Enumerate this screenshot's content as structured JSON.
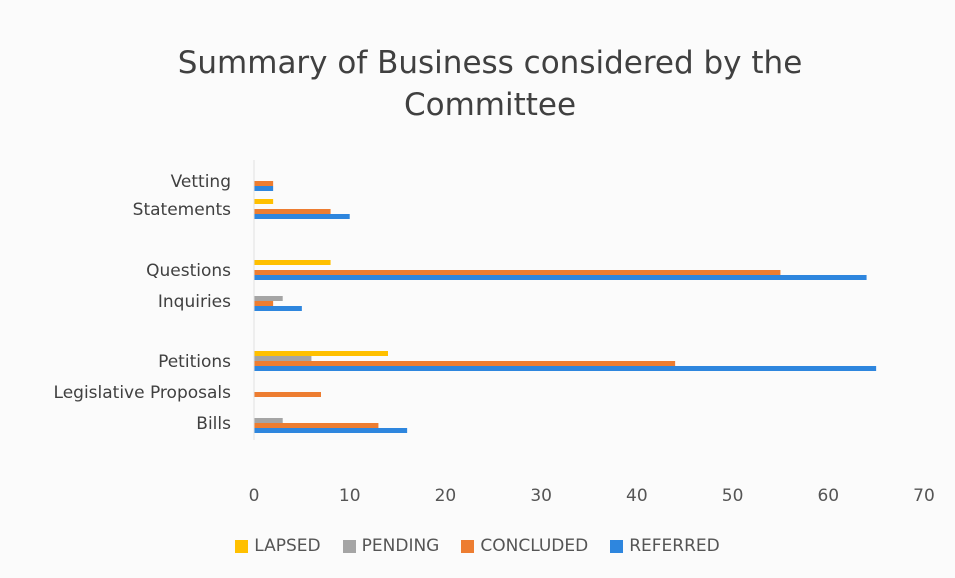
{
  "chart_data": {
    "type": "bar",
    "orientation": "horizontal",
    "title": "Summary of Business considered by the Committee",
    "categories": [
      "Vetting",
      "Statements",
      "Questions",
      "Inquiries",
      "Petitions",
      "Legislative Proposals",
      "Bills"
    ],
    "xlim": [
      0,
      70
    ],
    "xticks": [
      0,
      10,
      20,
      30,
      40,
      50,
      60,
      70
    ],
    "grid": false,
    "legend_position": "bottom",
    "series": [
      {
        "name": "LAPSED",
        "color": "#FFC000",
        "values": [
          0,
          2,
          8,
          0,
          14,
          0,
          0
        ]
      },
      {
        "name": "PENDING",
        "color": "#A5A5A5",
        "values": [
          0,
          0,
          0,
          3,
          6,
          0,
          3
        ]
      },
      {
        "name": "CONCLUDED",
        "color": "#ED7D31",
        "values": [
          2,
          8,
          55,
          2,
          44,
          7,
          13
        ]
      },
      {
        "name": "REFERRED",
        "color": "#2E86DE",
        "values": [
          2,
          10,
          64,
          5,
          65,
          0,
          16
        ]
      }
    ]
  }
}
